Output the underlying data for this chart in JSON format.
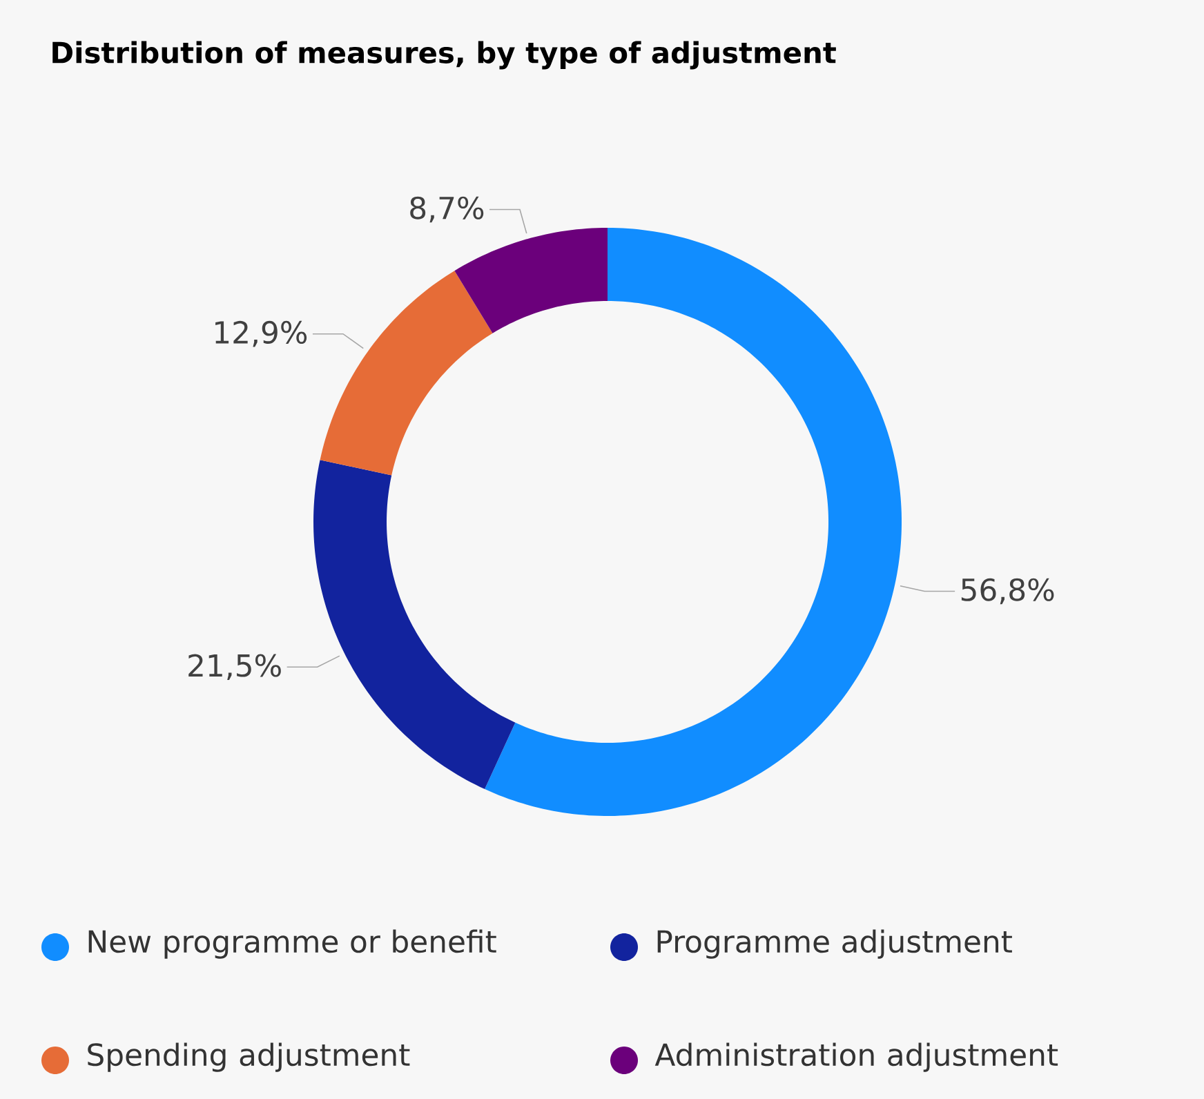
{
  "chart_data": {
    "type": "donut",
    "title": "Distribution of measures, by type of adjustment",
    "categories": [
      "New programme or benefit",
      "Programme adjustment",
      "Spending adjustment",
      "Administration adjustment"
    ],
    "values": [
      56.8,
      21.5,
      12.9,
      8.7
    ],
    "value_labels": [
      "56,8%",
      "21,5%",
      "12,9%",
      "8,7%"
    ],
    "colors": [
      "#118dff",
      "#12239e",
      "#e66c37",
      "#6b007b"
    ],
    "legend": "bottom"
  }
}
